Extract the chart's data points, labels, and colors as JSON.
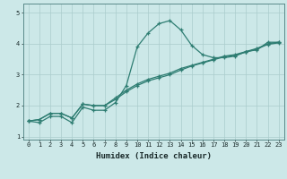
{
  "title": "",
  "xlabel": "Humidex (Indice chaleur)",
  "ylabel": "",
  "bg_color": "#cce8e8",
  "grid_color": "#aacccc",
  "line_color": "#2e7d72",
  "xlim": [
    -0.5,
    23.5
  ],
  "ylim": [
    0.9,
    5.3
  ],
  "xticks": [
    0,
    1,
    2,
    3,
    4,
    5,
    6,
    7,
    8,
    9,
    10,
    11,
    12,
    13,
    14,
    15,
    16,
    17,
    18,
    19,
    20,
    21,
    22,
    23
  ],
  "yticks": [
    1,
    2,
    3,
    4,
    5
  ],
  "ytick_labels": [
    "1",
    "2",
    "3",
    "4",
    "5"
  ],
  "line1_x": [
    0,
    1,
    2,
    3,
    4,
    5,
    6,
    7,
    8,
    9,
    10,
    11,
    12,
    13,
    14,
    15,
    16,
    17,
    18,
    19,
    20,
    21,
    22,
    23
  ],
  "line1_y": [
    1.5,
    1.45,
    1.65,
    1.65,
    1.45,
    1.95,
    1.85,
    1.85,
    2.1,
    2.65,
    3.9,
    4.35,
    4.65,
    4.75,
    4.45,
    3.95,
    3.65,
    3.55,
    3.55,
    3.6,
    3.75,
    3.8,
    4.05,
    4.05
  ],
  "line2_x": [
    0,
    1,
    2,
    3,
    4,
    5,
    6,
    7,
    8,
    9,
    10,
    11,
    12,
    13,
    14,
    15,
    16,
    17,
    18,
    19,
    20,
    21,
    22,
    23
  ],
  "line2_y": [
    1.5,
    1.55,
    1.75,
    1.75,
    1.6,
    2.05,
    2.0,
    2.0,
    2.25,
    2.5,
    2.7,
    2.85,
    2.95,
    3.05,
    3.2,
    3.3,
    3.4,
    3.5,
    3.6,
    3.65,
    3.75,
    3.85,
    4.0,
    4.05
  ],
  "line3_x": [
    0,
    1,
    2,
    3,
    4,
    5,
    6,
    7,
    8,
    9,
    10,
    11,
    12,
    13,
    14,
    15,
    16,
    17,
    18,
    19,
    20,
    21,
    22,
    23
  ],
  "line3_y": [
    1.5,
    1.55,
    1.75,
    1.75,
    1.6,
    2.05,
    2.0,
    2.0,
    2.2,
    2.45,
    2.65,
    2.8,
    2.9,
    3.0,
    3.15,
    3.28,
    3.38,
    3.48,
    3.58,
    3.63,
    3.73,
    3.83,
    3.98,
    4.03
  ],
  "marker": "+",
  "markersize": 3.0,
  "linewidth": 0.9
}
